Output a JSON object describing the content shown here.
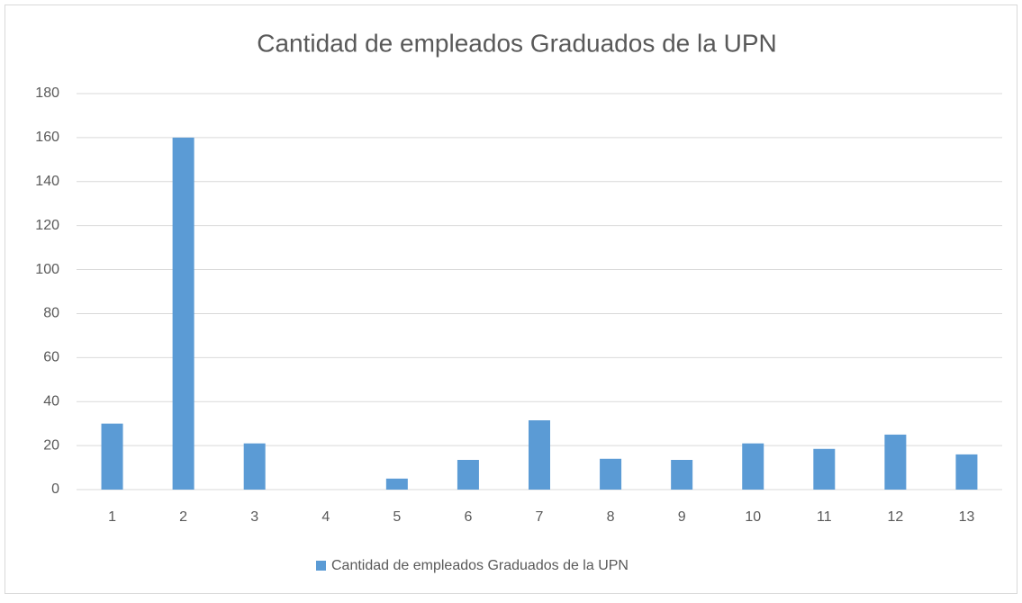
{
  "chart_data": {
    "type": "bar",
    "title": "Cantidad de empleados Graduados de la UPN",
    "categories": [
      "1",
      "2",
      "3",
      "4",
      "5",
      "6",
      "7",
      "8",
      "9",
      "10",
      "11",
      "12",
      "13"
    ],
    "series": [
      {
        "name": "Cantidad de empleados Graduados de la UPN",
        "color": "#5b9bd5",
        "values": [
          30,
          160,
          21,
          0,
          5,
          13.5,
          31.5,
          14,
          13.5,
          21,
          18.5,
          25,
          16
        ]
      }
    ],
    "ylim": [
      0,
      180
    ],
    "yticks": [
      0,
      20,
      40,
      60,
      80,
      100,
      120,
      140,
      160,
      180
    ],
    "grid": true,
    "legend": "bottom"
  }
}
